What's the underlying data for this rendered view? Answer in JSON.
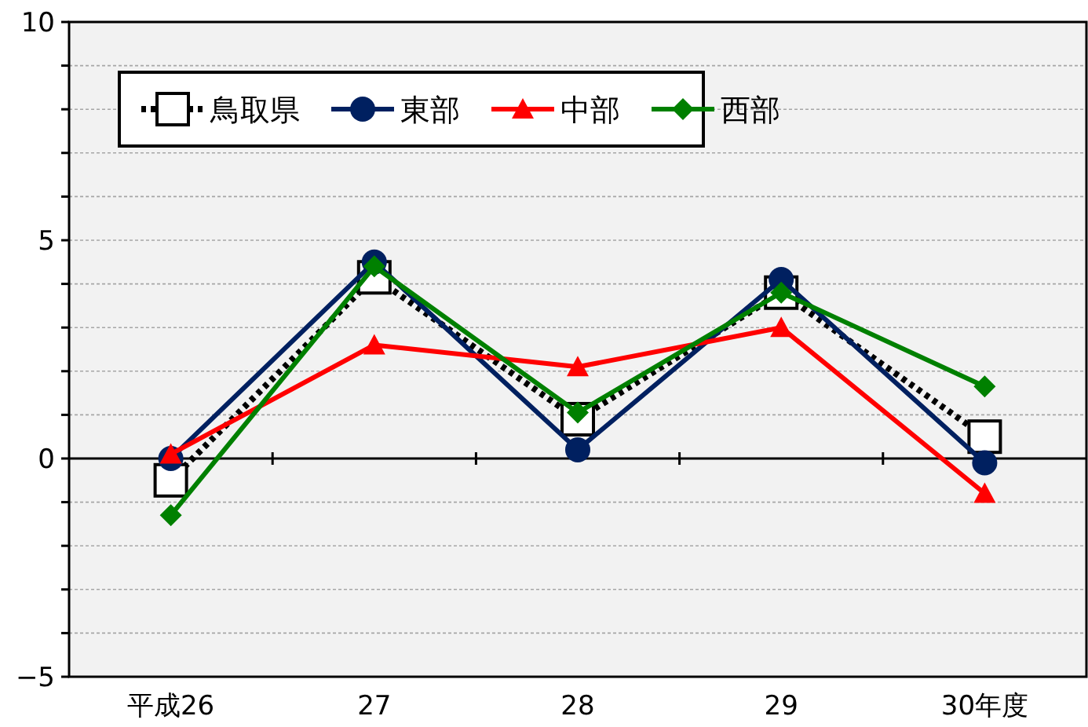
{
  "chart_data": {
    "type": "line",
    "categories": [
      "平成26",
      "27",
      "28",
      "29",
      "30年度"
    ],
    "series": [
      {
        "name": "鳥取県",
        "color": "#000000",
        "values": [
          -0.5,
          4.15,
          0.9,
          3.8,
          0.5
        ],
        "marker": "square",
        "line_style": "dotted"
      },
      {
        "name": "東部",
        "color": "#002060",
        "values": [
          0.0,
          4.5,
          0.2,
          4.1,
          -0.1
        ],
        "marker": "circle",
        "line_style": "solid"
      },
      {
        "name": "中部",
        "color": "#ff0000",
        "values": [
          0.1,
          2.6,
          2.1,
          3.0,
          -0.8
        ],
        "marker": "triangle",
        "line_style": "solid"
      },
      {
        "name": "西部",
        "color": "#008000",
        "values": [
          -1.3,
          4.4,
          1.05,
          3.8,
          1.65
        ],
        "marker": "diamond",
        "line_style": "solid"
      }
    ],
    "ylim": [
      -5,
      10
    ],
    "yticks": [
      {
        "value": -5,
        "label": "−5"
      },
      {
        "value": -4,
        "label": null
      },
      {
        "value": -3,
        "label": null
      },
      {
        "value": -2,
        "label": null
      },
      {
        "value": -1,
        "label": null
      },
      0,
      {
        "value": 1,
        "label": null
      },
      {
        "value": 2,
        "label": null
      },
      {
        "value": 3,
        "label": null
      },
      {
        "value": 4,
        "label": null
      },
      5,
      {
        "value": 6,
        "label": null
      },
      {
        "value": 7,
        "label": null
      },
      {
        "value": 8,
        "label": null
      },
      {
        "value": 9,
        "label": null
      },
      10
    ],
    "grid": "y",
    "legend": "top left"
  }
}
